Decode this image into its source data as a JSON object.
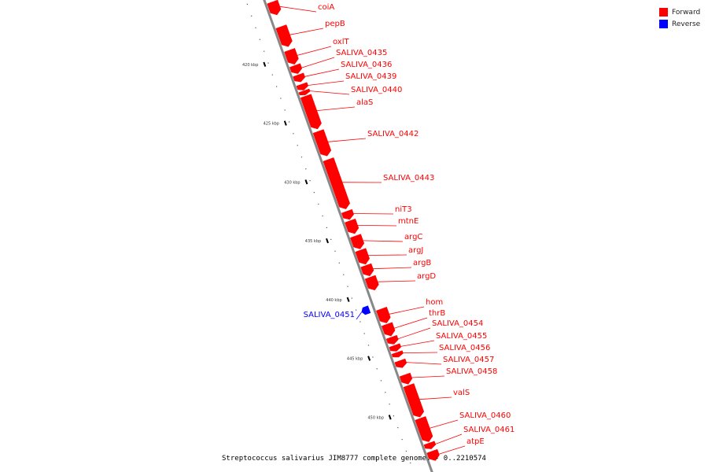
{
  "caption": "Streptococcus salivarius JIM8777 complete genome. - 0..2210574",
  "legend": [
    {
      "label": "Forward",
      "color": "#ff0000"
    },
    {
      "label": "Reverse",
      "color": "#0000ff"
    }
  ],
  "colors": {
    "forward": "#ff0000",
    "reverse": "#0000ff",
    "backbone": "#888888",
    "tick": "#000000"
  },
  "ruler": {
    "labels": [
      "420 kbp",
      "425 kbp",
      "430 kbp",
      "435 kbp",
      "440 kbp",
      "445 kbp",
      "450 kbp"
    ]
  },
  "genes": [
    {
      "name": "coiA",
      "strand": "forward",
      "start": 415.5,
      "end": 416.6
    },
    {
      "name": "pepB",
      "strand": "forward",
      "start": 417.6,
      "end": 419.3
    },
    {
      "name": "oxlT",
      "strand": "forward",
      "start": 419.6,
      "end": 420.8
    },
    {
      "name": "SALIVA_0435",
      "strand": "forward",
      "start": 420.9,
      "end": 421.6
    },
    {
      "name": "SALIVA_0436",
      "strand": "forward",
      "start": 421.7,
      "end": 422.3
    },
    {
      "name": "SALIVA_0439",
      "strand": "forward",
      "start": 422.5,
      "end": 423.0
    },
    {
      "name": "SALIVA_0440",
      "strand": "forward",
      "start": 423.05,
      "end": 423.4
    },
    {
      "name": "alaS",
      "strand": "forward",
      "start": 423.5,
      "end": 426.3
    },
    {
      "name": "SALIVA_0442",
      "strand": "forward",
      "start": 426.5,
      "end": 428.6
    },
    {
      "name": "SALIVA_0443",
      "strand": "forward",
      "start": 428.9,
      "end": 433.1
    },
    {
      "name": "niT3",
      "strand": "forward",
      "start": 433.3,
      "end": 434.0
    },
    {
      "name": "mtnE",
      "strand": "forward",
      "start": 434.1,
      "end": 435.2
    },
    {
      "name": "argC",
      "strand": "forward",
      "start": 435.4,
      "end": 436.5
    },
    {
      "name": "argJ",
      "strand": "forward",
      "start": 436.6,
      "end": 437.8
    },
    {
      "name": "argB",
      "strand": "forward",
      "start": 437.9,
      "end": 438.8
    },
    {
      "name": "argD",
      "strand": "forward",
      "start": 438.9,
      "end": 440.0
    },
    {
      "name": "SALIVA_0451",
      "strand": "reverse",
      "start": 441.0,
      "end": 441.6
    },
    {
      "name": "hom",
      "strand": "forward",
      "start": 441.6,
      "end": 442.8
    },
    {
      "name": "thrB",
      "strand": "forward",
      "start": 442.9,
      "end": 443.9
    },
    {
      "name": "SALIVA_0454",
      "strand": "forward",
      "start": 444.0,
      "end": 444.6
    },
    {
      "name": "SALIVA_0455",
      "strand": "forward",
      "start": 444.7,
      "end": 445.2
    },
    {
      "name": "SALIVA_0456",
      "strand": "forward",
      "start": 445.3,
      "end": 445.7
    },
    {
      "name": "SALIVA_0457",
      "strand": "forward",
      "start": 446.0,
      "end": 446.6
    },
    {
      "name": "SALIVA_0458",
      "strand": "forward",
      "start": 447.2,
      "end": 448.0
    },
    {
      "name": "valS",
      "strand": "forward",
      "start": 448.1,
      "end": 450.8
    },
    {
      "name": "SALIVA_0460",
      "strand": "forward",
      "start": 450.9,
      "end": 452.9
    },
    {
      "name": "SALIVA_0461",
      "strand": "forward",
      "start": 453.0,
      "end": 453.5
    },
    {
      "name": "atpE",
      "strand": "forward",
      "start": 453.7,
      "end": 454.5
    }
  ]
}
